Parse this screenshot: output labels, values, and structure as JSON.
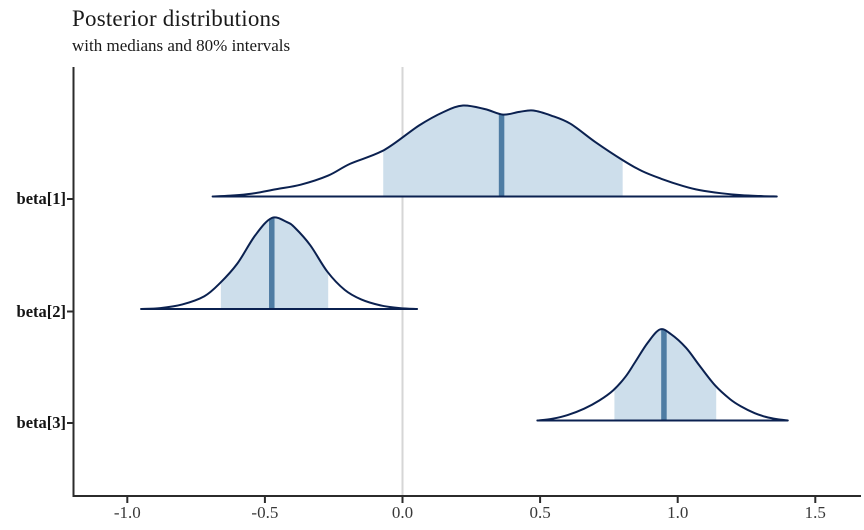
{
  "chart_data": {
    "type": "area",
    "title": "Posterior distributions",
    "subtitle": "with medians and 80% intervals",
    "xlabel": "",
    "ylabel": "",
    "xlim": [
      -1.22,
      1.67
    ],
    "grid": false,
    "reference_line_x": 0.0,
    "x_axis": {
      "ticks": [
        {
          "value": -1.0,
          "label": "-1.0"
        },
        {
          "value": -0.5,
          "label": "-0.5"
        },
        {
          "value": 0.0,
          "label": "0.0"
        },
        {
          "value": 0.5,
          "label": "0.5"
        },
        {
          "value": 1.0,
          "label": "1.0"
        },
        {
          "value": 1.5,
          "label": "1.5"
        }
      ]
    },
    "series": [
      {
        "name": "beta[1]",
        "median": 0.36,
        "interval_80": [
          -0.07,
          0.8
        ],
        "range": [
          -0.69,
          1.36
        ],
        "density": [
          [
            -0.69,
            0
          ],
          [
            -0.625,
            0.01
          ],
          [
            -0.55,
            0.03
          ],
          [
            -0.46,
            0.08
          ],
          [
            -0.37,
            0.13
          ],
          [
            -0.27,
            0.23
          ],
          [
            -0.19,
            0.36
          ],
          [
            -0.067,
            0.51
          ],
          [
            0.06,
            0.78
          ],
          [
            0.15,
            0.93
          ],
          [
            0.22,
            1.0
          ],
          [
            0.3,
            0.96
          ],
          [
            0.365,
            0.9
          ],
          [
            0.425,
            0.93
          ],
          [
            0.475,
            0.945
          ],
          [
            0.54,
            0.89
          ],
          [
            0.61,
            0.8
          ],
          [
            0.7,
            0.6
          ],
          [
            0.8,
            0.4
          ],
          [
            0.87,
            0.28
          ],
          [
            0.94,
            0.195
          ],
          [
            1.02,
            0.115
          ],
          [
            1.08,
            0.07
          ],
          [
            1.16,
            0.035
          ],
          [
            1.23,
            0.015
          ],
          [
            1.3,
            0.005
          ],
          [
            1.36,
            0
          ]
        ]
      },
      {
        "name": "beta[2]",
        "median": -0.475,
        "interval_80": [
          -0.66,
          -0.27
        ],
        "range": [
          -0.95,
          0.05
        ],
        "density": [
          [
            -0.95,
            0
          ],
          [
            -0.88,
            0.01
          ],
          [
            -0.8,
            0.05
          ],
          [
            -0.72,
            0.14
          ],
          [
            -0.663,
            0.285
          ],
          [
            -0.6,
            0.5
          ],
          [
            -0.535,
            0.81
          ],
          [
            -0.475,
            1.0
          ],
          [
            -0.42,
            0.955
          ],
          [
            -0.39,
            0.89
          ],
          [
            -0.335,
            0.7
          ],
          [
            -0.273,
            0.41
          ],
          [
            -0.21,
            0.21
          ],
          [
            -0.15,
            0.105
          ],
          [
            -0.08,
            0.04
          ],
          [
            -0.01,
            0.01
          ],
          [
            0.053,
            0
          ]
        ]
      },
      {
        "name": "beta[3]",
        "median": 0.95,
        "interval_80": [
          0.77,
          1.14
        ],
        "range": [
          0.49,
          1.4
        ],
        "density": [
          [
            0.49,
            0
          ],
          [
            0.545,
            0.02
          ],
          [
            0.6,
            0.06
          ],
          [
            0.66,
            0.13
          ],
          [
            0.715,
            0.22
          ],
          [
            0.765,
            0.33
          ],
          [
            0.81,
            0.48
          ],
          [
            0.845,
            0.64
          ],
          [
            0.89,
            0.85
          ],
          [
            0.935,
            1.0
          ],
          [
            0.975,
            0.95
          ],
          [
            1.03,
            0.8
          ],
          [
            1.08,
            0.6
          ],
          [
            1.136,
            0.385
          ],
          [
            1.19,
            0.235
          ],
          [
            1.23,
            0.155
          ],
          [
            1.28,
            0.08
          ],
          [
            1.32,
            0.04
          ],
          [
            1.36,
            0.015
          ],
          [
            1.4,
            0
          ]
        ]
      }
    ],
    "colors": {
      "outline": "#0b2150",
      "fill": "#cddeeb",
      "median_line": "#4e7ca3",
      "reference_line": "#d6d6d6",
      "axis": "#2b2b2b",
      "title_text": "#1a1a1a",
      "tick_text": "#383838"
    }
  }
}
